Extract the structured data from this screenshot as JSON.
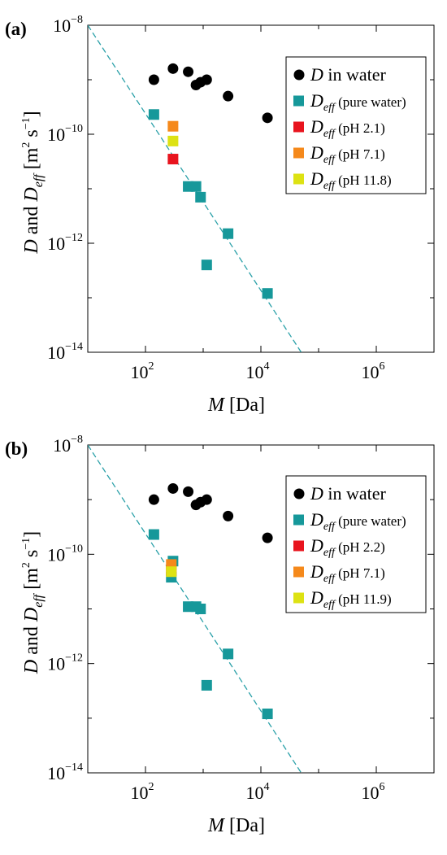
{
  "colors": {
    "black": "#000000",
    "teal": "#16989a",
    "red": "#e8141e",
    "orange": "#f5891b",
    "yellow": "#dde213",
    "dash": "#2aa0a8"
  },
  "chart_data": [
    {
      "type": "scatter",
      "panel_label": "(a)",
      "xlabel": "M [Da]",
      "ylabel": "D and D_eff [m^2 s^-1]",
      "xscale": "log",
      "yscale": "log",
      "xlim": [
        10,
        10000000
      ],
      "ylim": [
        1e-14,
        1e-08
      ],
      "x_ticks": [
        "10^2",
        "10^4",
        "10^6"
      ],
      "y_ticks": [
        "10^-8",
        "10^-10",
        "10^-12",
        "10^-14"
      ],
      "legend_position": "top-right",
      "fit_line": {
        "style": "dashed",
        "x": [
          10,
          50000
        ],
        "y": [
          1e-08,
          1e-14
        ]
      },
      "series": [
        {
          "name": "D in water",
          "marker": "circle",
          "color": "black",
          "x": [
            140,
            300,
            550,
            750,
            900,
            1150,
            2700,
            13000
          ],
          "y": [
            1e-09,
            1.6e-09,
            1.4e-09,
            8e-10,
            9e-10,
            1e-09,
            5e-10,
            2e-10
          ]
        },
        {
          "name": "D_eff (pure water)",
          "marker": "square",
          "color": "teal",
          "x": [
            140,
            550,
            750,
            900,
            1150,
            2700,
            13000
          ],
          "y": [
            2.3e-10,
            1.1e-11,
            1.1e-11,
            7e-12,
            4e-13,
            1.5e-12,
            1.2e-13
          ]
        },
        {
          "name": "D_eff (pH 2.1)",
          "marker": "square",
          "color": "red",
          "x": [
            300
          ],
          "y": [
            3.5e-11
          ]
        },
        {
          "name": "D_eff (pH 7.1)",
          "marker": "square",
          "color": "orange",
          "x": [
            300
          ],
          "y": [
            1.4e-10
          ]
        },
        {
          "name": "D_eff (pH 11.8)",
          "marker": "square",
          "color": "yellow",
          "x": [
            300
          ],
          "y": [
            7.5e-11
          ]
        }
      ]
    },
    {
      "type": "scatter",
      "panel_label": "(b)",
      "xlabel": "M [Da]",
      "ylabel": "D and D_eff [m^2 s^-1]",
      "xscale": "log",
      "yscale": "log",
      "xlim": [
        10,
        10000000
      ],
      "ylim": [
        1e-14,
        1e-08
      ],
      "x_ticks": [
        "10^2",
        "10^4",
        "10^6"
      ],
      "y_ticks": [
        "10^-8",
        "10^-10",
        "10^-12",
        "10^-14"
      ],
      "legend_position": "top-right",
      "fit_line": {
        "style": "dashed",
        "x": [
          10,
          50000
        ],
        "y": [
          1e-08,
          1e-14
        ]
      },
      "series": [
        {
          "name": "D in water",
          "marker": "circle",
          "color": "black",
          "x": [
            140,
            300,
            550,
            750,
            900,
            1150,
            2700,
            13000
          ],
          "y": [
            1e-09,
            1.6e-09,
            1.4e-09,
            8e-10,
            9e-10,
            1e-09,
            5e-10,
            2e-10
          ]
        },
        {
          "name": "D_eff (pure water)",
          "marker": "square",
          "color": "teal",
          "x": [
            140,
            280,
            300,
            550,
            750,
            900,
            1150,
            2700,
            13000
          ],
          "y": [
            2.3e-10,
            3.8e-11,
            7.5e-11,
            1.1e-11,
            1.1e-11,
            1e-11,
            4e-13,
            1.5e-12,
            1.2e-13
          ]
        },
        {
          "name": "D_eff (pH 2.2)",
          "marker": "square",
          "color": "red",
          "x": [
            280
          ],
          "y": [
            5e-11
          ]
        },
        {
          "name": "D_eff (pH 7.1)",
          "marker": "square",
          "color": "orange",
          "x": [
            280
          ],
          "y": [
            6.5e-11
          ]
        },
        {
          "name": "D_eff (pH 11.9)",
          "marker": "square",
          "color": "yellow",
          "x": [
            280
          ],
          "y": [
            4.8e-11
          ]
        }
      ]
    }
  ]
}
